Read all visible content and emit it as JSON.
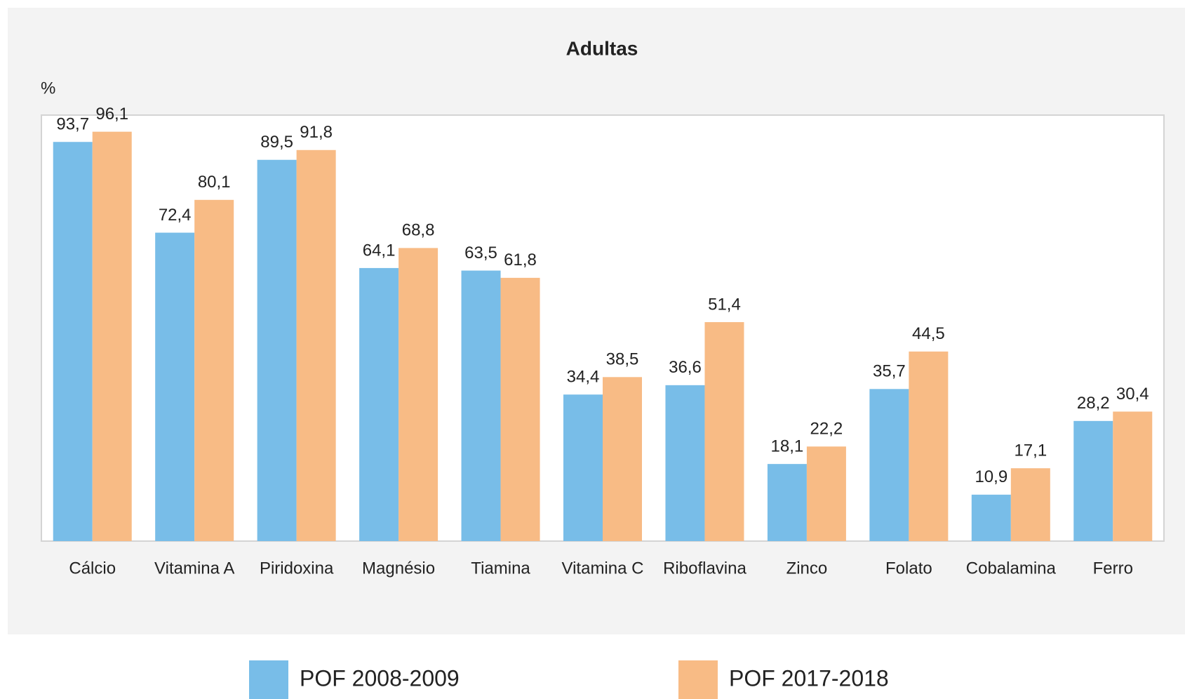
{
  "chart_data": {
    "type": "bar",
    "title": "Adultas",
    "y_label": "%",
    "categories": [
      "Cálcio",
      "Vitamina A",
      "Piridoxina",
      "Magnésio",
      "Tiamina",
      "Vitamina C",
      "Riboflavina",
      "Zinco",
      "Folato",
      "Cobalamina",
      "Ferro"
    ],
    "series": [
      {
        "name": "POF 2008-2009",
        "color": "#78bde8",
        "values": [
          93.7,
          72.4,
          89.5,
          64.1,
          63.5,
          34.4,
          36.6,
          18.1,
          35.7,
          10.9,
          28.2
        ],
        "value_labels": [
          "93,7",
          "72,4",
          "89,5",
          "64,1",
          "63,5",
          "34,4",
          "36,6",
          "18,1",
          "35,7",
          "10,9",
          "28,2"
        ]
      },
      {
        "name": "POF 2017-2018",
        "color": "#f8bb85",
        "values": [
          96.1,
          80.1,
          91.8,
          68.8,
          61.8,
          38.5,
          51.4,
          22.2,
          44.5,
          17.1,
          30.4
        ],
        "value_labels": [
          "96,1",
          "80,1",
          "91,8",
          "68,8",
          "61,8",
          "38,5",
          "51,4",
          "22,2",
          "44,5",
          "17,1",
          "30,4"
        ]
      }
    ],
    "ylim": [
      0,
      100
    ],
    "legend": "bottom"
  }
}
